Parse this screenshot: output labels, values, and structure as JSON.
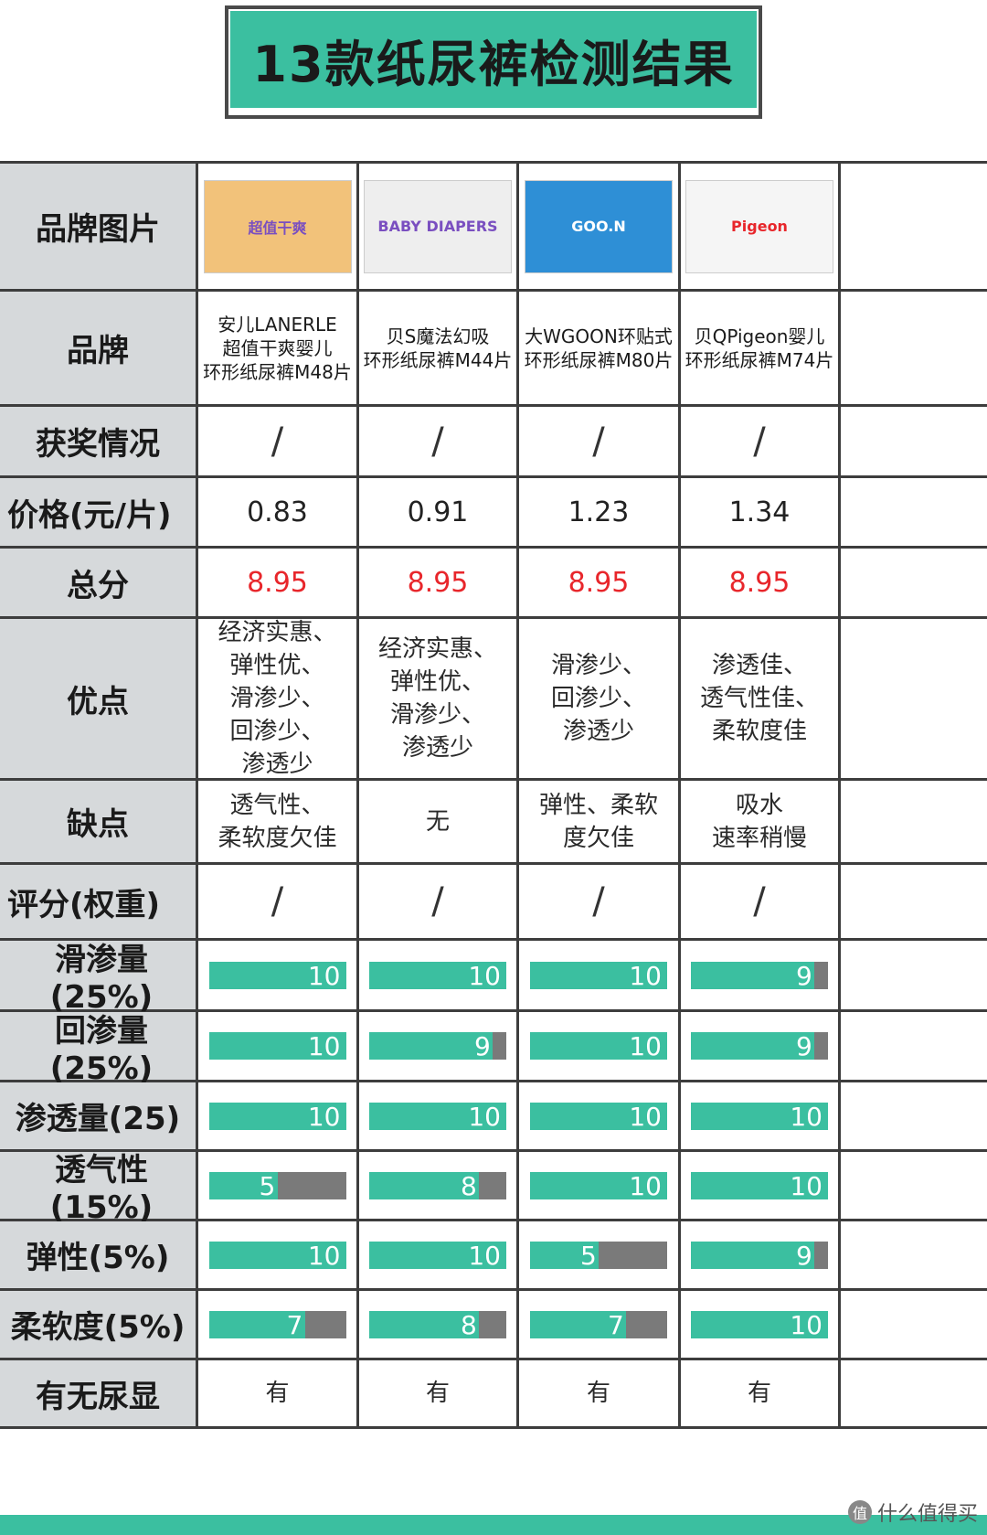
{
  "title": "13款纸尿裤检测结果",
  "labels": {
    "image": "品牌图片",
    "brand": "品牌",
    "award": "获奖情况",
    "price": "价格(元/片)",
    "score": "总分",
    "pros": "优点",
    "cons": "缺点",
    "rating": "评分(权重)",
    "leak": "滑渗量(25%)",
    "rewet": "回渗量(25%)",
    "permeate": "渗透量(25)",
    "breath": "透气性(15%)",
    "elastic": "弹性(5%)",
    "soft": "柔软度(5%)",
    "indicator": "有无尿显"
  },
  "products": [
    {
      "brand": "安儿LANERLE\n超值干爽婴儿\n环形纸尿裤M48片",
      "award": "/",
      "price": "0.83",
      "score": "8.95",
      "pros": "经济实惠、\n弹性优、\n滑渗少、\n回渗少、\n渗透少",
      "cons": "透气性、\n柔软度欠佳",
      "rating": "/",
      "leak": 10,
      "rewet": 10,
      "permeate": 10,
      "breath": 5,
      "elastic": 10,
      "soft": 7,
      "indicator": "有",
      "image_text": "超值干爽",
      "image_color": "#f2c27a"
    },
    {
      "brand": "贝S魔法幻吸\n环形纸尿裤M44片",
      "award": "/",
      "price": "0.91",
      "score": "8.95",
      "pros": "经济实惠、\n弹性优、\n滑渗少、\n渗透少",
      "cons": "无",
      "rating": "/",
      "leak": 10,
      "rewet": 9,
      "permeate": 10,
      "breath": 8,
      "elastic": 10,
      "soft": 8,
      "indicator": "有",
      "image_text": "BABY DIAPERS",
      "image_color": "#eeeeee"
    },
    {
      "brand": "大WGOON环贴式\n环形纸尿裤M80片",
      "award": "/",
      "price": "1.23",
      "score": "8.95",
      "pros": "滑渗少、\n回渗少、\n渗透少",
      "cons": "弹性、柔软\n度欠佳",
      "rating": "/",
      "leak": 10,
      "rewet": 10,
      "permeate": 10,
      "breath": 10,
      "elastic": 5,
      "soft": 7,
      "indicator": "有",
      "image_text": "GOO.N",
      "image_color": "#2e8fd6"
    },
    {
      "brand": "贝QPigeon婴儿\n环形纸尿裤M74片",
      "award": "/",
      "price": "1.34",
      "score": "8.95",
      "pros": "渗透佳、\n透气性佳、\n柔软度佳",
      "cons": "吸水\n速率稍慢",
      "rating": "/",
      "leak": 9,
      "rewet": 9,
      "permeate": 10,
      "breath": 10,
      "elastic": 9,
      "soft": 10,
      "indicator": "有",
      "image_text": "Pigeon",
      "image_color": "#f5f5f5"
    }
  ],
  "watermark": "什么值得买",
  "colors": {
    "accent": "#3bbfa0",
    "bar_empty": "#7a7a7a",
    "score_red": "#e8262b",
    "label_bg": "#d6d9db"
  }
}
